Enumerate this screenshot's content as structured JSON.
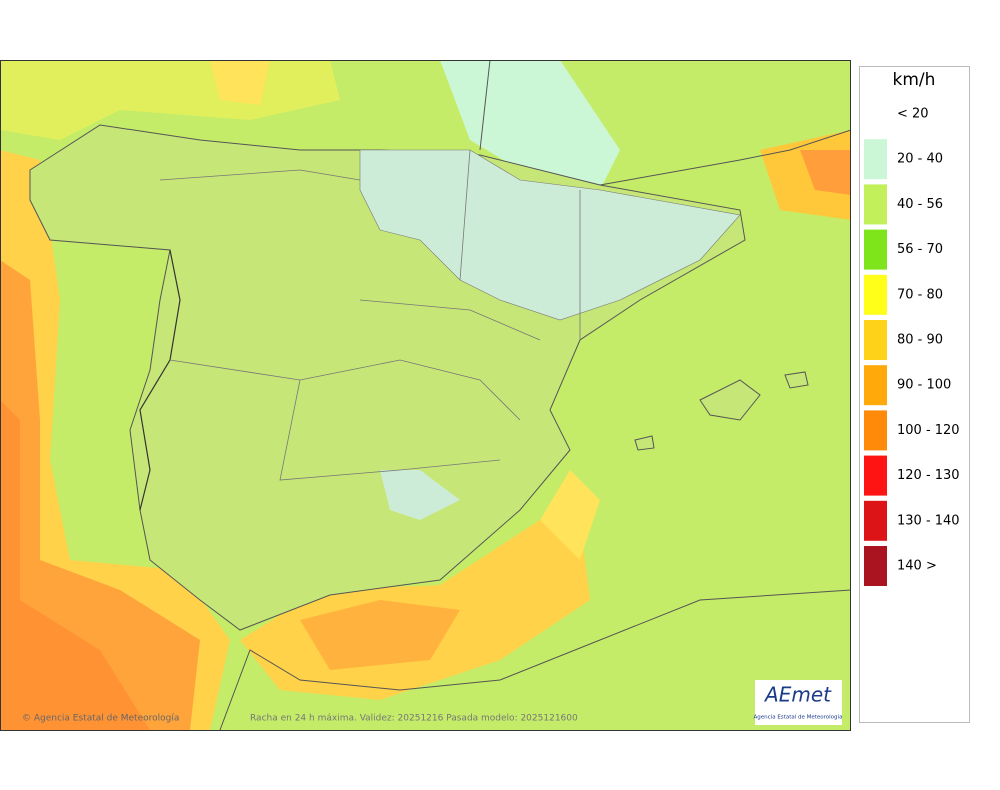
{
  "legend": {
    "title": "km/h",
    "items": [
      {
        "label": "< 20"
      },
      {
        "label": "20 - 40",
        "color": "#ccf7d6"
      },
      {
        "label": "40 - 56",
        "color": "#c2f05a"
      },
      {
        "label": "56 - 70",
        "color": "#7ee51a"
      },
      {
        "label": "70 - 80",
        "color": "#ffff1a"
      },
      {
        "label": "80 - 90",
        "color": "#ffd21a"
      },
      {
        "label": "90 - 100",
        "color": "#ffaa0a"
      },
      {
        "label": "100 - 120",
        "color": "#ff8a0a"
      },
      {
        "label": "120 - 130",
        "color": "#ff1414"
      },
      {
        "label": "130 - 140",
        "color": "#dc1418"
      },
      {
        "label": "140 >",
        "color": "#aa1420"
      }
    ]
  },
  "footer": {
    "credit": "© Agencia Estatal de Meteorología",
    "caption": "Racha en 24 h máxima. Validez: 20251216 Pasada modelo: 2025121600"
  },
  "logo": {
    "text": "AEmet",
    "subtitle": "Agencia Estatal de Meteorología"
  }
}
